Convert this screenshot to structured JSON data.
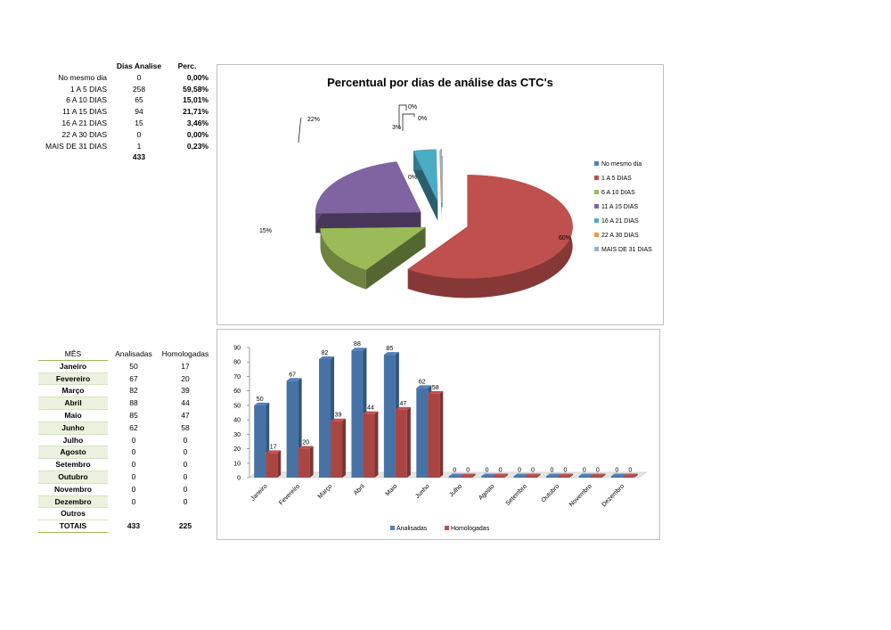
{
  "days_table": {
    "headers": [
      "Dias Analise",
      "Perc."
    ],
    "rows": [
      {
        "label": "No mesmo dia",
        "count": "0",
        "perc": "0,00%"
      },
      {
        "label": "1 A 5 DIAS",
        "count": "258",
        "perc": "59,58%"
      },
      {
        "label": "6 A 10 DIAS",
        "count": "65",
        "perc": "15,01%"
      },
      {
        "label": "11 A 15 DIAS",
        "count": "94",
        "perc": "21,71%"
      },
      {
        "label": "16 A 21 DIAS",
        "count": "15",
        "perc": "3,46%"
      },
      {
        "label": "22 A 30 DIAS",
        "count": "0",
        "perc": "0,00%"
      },
      {
        "label": "MAIS DE 31 DIAS",
        "count": "1",
        "perc": "0,23%"
      }
    ],
    "total": "433"
  },
  "month_table": {
    "headers": [
      "MÊS",
      "Analisadas",
      "Homologadas"
    ],
    "rows": [
      {
        "month": "Janeiro",
        "analisadas": "50",
        "homologadas": "17"
      },
      {
        "month": "Fevereiro",
        "analisadas": "67",
        "homologadas": "20"
      },
      {
        "month": "Março",
        "analisadas": "82",
        "homologadas": "39"
      },
      {
        "month": "Abril",
        "analisadas": "88",
        "homologadas": "44"
      },
      {
        "month": "Maio",
        "analisadas": "85",
        "homologadas": "47"
      },
      {
        "month": "Junho",
        "analisadas": "62",
        "homologadas": "58"
      },
      {
        "month": "Julho",
        "analisadas": "0",
        "homologadas": "0"
      },
      {
        "month": "Agosto",
        "analisadas": "0",
        "homologadas": "0"
      },
      {
        "month": "Setembro",
        "analisadas": "0",
        "homologadas": "0"
      },
      {
        "month": "Outubro",
        "analisadas": "0",
        "homologadas": "0"
      },
      {
        "month": "Novembro",
        "analisadas": "0",
        "homologadas": "0"
      },
      {
        "month": "Dezembro",
        "analisadas": "0",
        "homologadas": "0"
      },
      {
        "month": "Outros",
        "analisadas": "",
        "homologadas": ""
      }
    ],
    "total_label": "TOTAIS",
    "total_analisadas": "433",
    "total_homologadas": "225"
  },
  "chart_data": [
    {
      "type": "pie",
      "title": "Percentual por dias de análise das CTC's",
      "categories": [
        "No mesmo dia",
        "1 A 5 DIAS",
        "6 A 10 DIAS",
        "11 A 15 DIAS",
        "16 A 21 DIAS",
        "22 A 30 DIAS",
        "MAIS DE 31 DIAS"
      ],
      "values": [
        0,
        258,
        65,
        94,
        15,
        0,
        1
      ],
      "data_labels": [
        "0%",
        "60%",
        "15%",
        "22%",
        "3%",
        "0%",
        "0%"
      ],
      "colors": [
        "#4f81bd",
        "#c0504d",
        "#9bbb59",
        "#8064a2",
        "#4bacc6",
        "#f79646",
        "#95b3d7"
      ],
      "legend": "right",
      "style": "3d-exploded"
    },
    {
      "type": "bar",
      "categories": [
        "Janeiro",
        "Fevereiro",
        "Março",
        "Abril",
        "Maio",
        "Junho",
        "Julho",
        "Agosto",
        "Setembro",
        "Outubro",
        "Novembro",
        "Dezembro"
      ],
      "series": [
        {
          "name": "Analisadas",
          "values": [
            50,
            67,
            82,
            88,
            85,
            62,
            0,
            0,
            0,
            0,
            0,
            0
          ],
          "color": "#4f81bd"
        },
        {
          "name": "Homologadas",
          "values": [
            17,
            20,
            39,
            44,
            47,
            58,
            0,
            0,
            0,
            0,
            0,
            0
          ],
          "color": "#c0504d"
        }
      ],
      "ylim": [
        0,
        90
      ],
      "yticks": [
        0,
        10,
        20,
        30,
        40,
        50,
        60,
        70,
        80,
        90
      ],
      "legend": "bottom",
      "style": "3d-clustered-column"
    }
  ]
}
